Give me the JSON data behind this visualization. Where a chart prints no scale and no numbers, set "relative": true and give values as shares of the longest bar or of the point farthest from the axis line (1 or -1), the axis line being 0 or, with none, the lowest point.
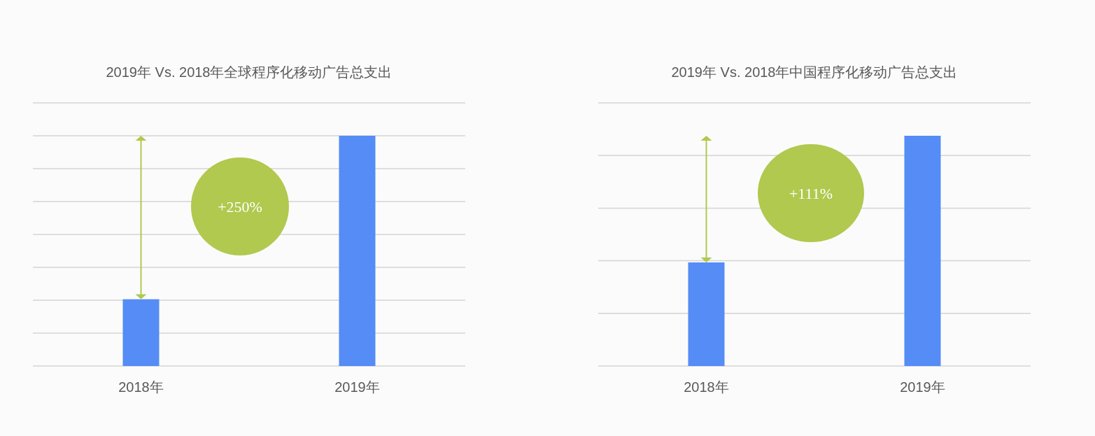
{
  "chart_data": [
    {
      "type": "bar",
      "title": "2019年 Vs. 2018年全球程序化移动广告总支出",
      "categories": [
        "2018年",
        "2019年"
      ],
      "values": [
        0.29,
        1
      ],
      "color": "#558cf6",
      "relative": true,
      "grid": "y",
      "annotations": [
        "+250%"
      ]
    },
    {
      "type": "bar",
      "title": "2019年 Vs. 2018年中国程序化移动广告总支出",
      "categories": [
        "2018年",
        "2019年"
      ],
      "values": [
        0.45,
        1
      ],
      "color": "#558cf6",
      "relative": true,
      "grid": "y",
      "annotations": [
        "+111%"
      ]
    }
  ]
}
